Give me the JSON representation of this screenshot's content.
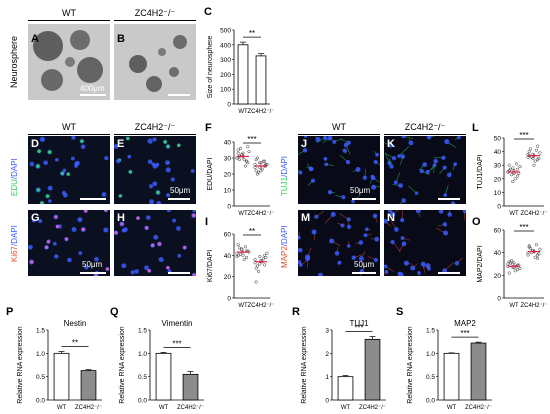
{
  "headers": {
    "wt": "WT",
    "ko": "ZC4H2⁻/⁻"
  },
  "row_labels": {
    "neurosphere": "Neurosphere",
    "edu": "EDU",
    "ki67": "Ki67",
    "tuj1": "TUJ1",
    "map2": "MAP2",
    "dapi": "/DAPI"
  },
  "scales": {
    "s400": "400μm",
    "s50": "50μm"
  },
  "letters": {
    "A": "A",
    "B": "B",
    "C": "C",
    "D": "D",
    "E": "E",
    "F": "F",
    "G": "G",
    "H": "H",
    "I": "I",
    "J": "J",
    "K": "K",
    "L": "L",
    "M": "M",
    "N": "N",
    "O": "O",
    "P": "P",
    "Q": "Q",
    "R": "R",
    "S": "S"
  },
  "colors": {
    "edu": "#2bd05a",
    "ki67": "#e35030",
    "tuj1": "#2bd05a",
    "map2": "#e35030",
    "dapi": "#3a5cff",
    "gray_bar": "#8c8c8c",
    "dot_red": "#e0204a"
  },
  "chart_data": [
    {
      "id": "C",
      "type": "bar",
      "categories": [
        "WT",
        "ZC4H2⁻/⁻"
      ],
      "values": [
        400,
        325
      ],
      "errors": [
        18,
        15
      ],
      "ylim": [
        0,
        500
      ],
      "yticks": [
        0,
        100,
        200,
        300,
        400,
        500
      ],
      "ylabel": "Size of neurosphere",
      "sig": "**",
      "fills": [
        "#ffffff",
        "#ffffff"
      ]
    },
    {
      "id": "F",
      "type": "scatter",
      "categories": [
        "WT",
        "ZC4H2⁻/⁻"
      ],
      "ylim": [
        0,
        40
      ],
      "yticks": [
        0,
        10,
        20,
        30,
        40
      ],
      "ylabel": "EDU/DAPI",
      "sig": "***",
      "groups": [
        [
          30,
          32,
          28,
          35,
          33,
          27,
          31,
          29,
          34,
          36,
          25,
          30,
          32,
          28,
          33,
          31,
          37,
          29
        ],
        [
          26,
          24,
          28,
          22,
          27,
          25,
          30,
          23,
          26,
          21,
          28,
          24,
          27,
          25,
          29,
          22,
          26,
          20
        ]
      ],
      "means": [
        31,
        25
      ]
    },
    {
      "id": "I",
      "type": "scatter",
      "categories": [
        "WT",
        "ZC4H2⁻/⁻"
      ],
      "ylim": [
        0,
        60
      ],
      "yticks": [
        0,
        20,
        40,
        60
      ],
      "ylabel": "Ki67/DAPI",
      "sig": "**",
      "groups": [
        [
          42,
          45,
          38,
          50,
          40,
          44,
          47,
          36,
          43,
          41,
          48,
          39,
          46,
          44,
          40
        ],
        [
          36,
          32,
          40,
          28,
          35,
          38,
          30,
          34,
          42,
          25,
          37,
          33,
          39,
          31,
          15
        ]
      ],
      "means": [
        43,
        34
      ]
    },
    {
      "id": "L",
      "type": "scatter",
      "categories": [
        "WT",
        "ZC4H2⁻/⁻"
      ],
      "ylim": [
        0,
        50
      ],
      "yticks": [
        0,
        10,
        20,
        30,
        40,
        50
      ],
      "ylabel": "TUJ1/DAPI",
      "sig": "***",
      "groups": [
        [
          25,
          28,
          22,
          30,
          26,
          24,
          27,
          20,
          29,
          23,
          31,
          25,
          18,
          27,
          26,
          24
        ],
        [
          36,
          38,
          34,
          40,
          37,
          35,
          42,
          33,
          39,
          36,
          41,
          38,
          35,
          44,
          37,
          30
        ]
      ],
      "means": [
        25,
        37
      ]
    },
    {
      "id": "O",
      "type": "scatter",
      "categories": [
        "WT",
        "ZC4H2⁻/⁻"
      ],
      "ylim": [
        0,
        60
      ],
      "yticks": [
        0,
        20,
        40,
        60
      ],
      "ylabel": "MAP2/DAPI",
      "sig": "***",
      "groups": [
        [
          28,
          30,
          25,
          32,
          27,
          29,
          31,
          24,
          26,
          33,
          28,
          30,
          27,
          29,
          22,
          31
        ],
        [
          40,
          42,
          38,
          45,
          41,
          39,
          44,
          36,
          43,
          40,
          47,
          38,
          42,
          35,
          46,
          41
        ]
      ],
      "means": [
        28,
        41
      ]
    },
    {
      "id": "P",
      "type": "bar",
      "categories": [
        "WT",
        "ZC4H2⁻/⁻"
      ],
      "values": [
        1.0,
        0.63
      ],
      "errors": [
        0.04,
        0.02
      ],
      "ylim": [
        0,
        1.5
      ],
      "yticks": [
        0.0,
        0.5,
        1.0,
        1.5
      ],
      "ylabel": "Relative RNA expression",
      "title": "Nestin",
      "sig": "**",
      "fills": [
        "#ffffff",
        "#8c8c8c"
      ]
    },
    {
      "id": "Q",
      "type": "bar",
      "categories": [
        "WT",
        "ZC4H2⁻/⁻"
      ],
      "values": [
        1.0,
        0.55
      ],
      "errors": [
        0.02,
        0.06
      ],
      "ylim": [
        0,
        1.5
      ],
      "yticks": [
        0.0,
        0.5,
        1.0,
        1.5
      ],
      "ylabel": "Relative RNA expression",
      "title": "Vimentin",
      "sig": "***",
      "fills": [
        "#ffffff",
        "#8c8c8c"
      ]
    },
    {
      "id": "R",
      "type": "bar",
      "categories": [
        "WT",
        "ZC4H2⁻/⁻"
      ],
      "values": [
        1.0,
        2.6
      ],
      "errors": [
        0.05,
        0.12
      ],
      "ylim": [
        0,
        3
      ],
      "yticks": [
        0,
        1,
        2,
        3
      ],
      "ylabel": "Relative RNA expression",
      "title": "TUJ1",
      "sig": "***",
      "fills": [
        "#ffffff",
        "#8c8c8c"
      ]
    },
    {
      "id": "S",
      "type": "bar",
      "categories": [
        "WT",
        "ZC4H2⁻/⁻"
      ],
      "values": [
        1.0,
        1.22
      ],
      "errors": [
        0.01,
        0.02
      ],
      "ylim": [
        0,
        1.5
      ],
      "yticks": [
        0.0,
        0.5,
        1.0,
        1.5
      ],
      "ylabel": "Relative RNA expression",
      "title": "MAP2",
      "sig": "***",
      "fills": [
        "#ffffff",
        "#8c8c8c"
      ]
    }
  ]
}
